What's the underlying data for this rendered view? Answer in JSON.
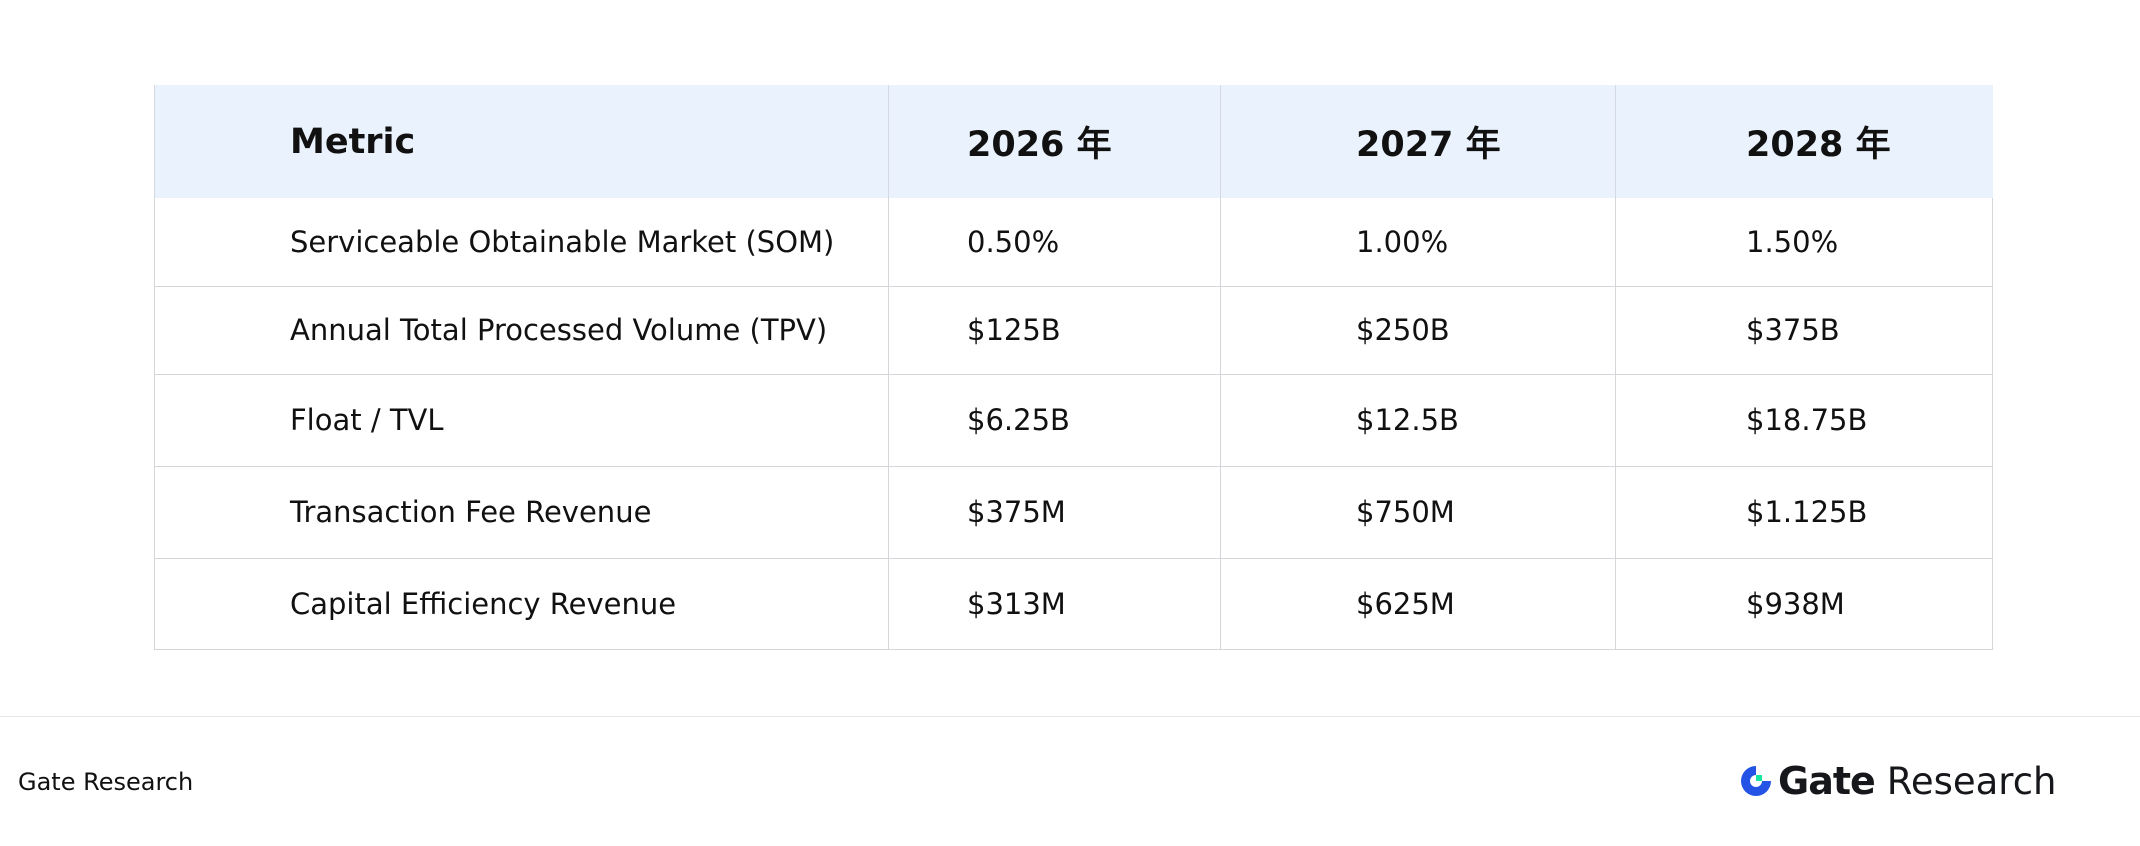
{
  "table": {
    "headers": [
      "Metric",
      "2026 年",
      "2027 年",
      "2028 年"
    ],
    "rows": [
      [
        "Serviceable Obtainable Market (SOM)",
        "0.50%",
        "1.00%",
        "1.50%"
      ],
      [
        "Annual Total Processed Volume (TPV)",
        "$125B",
        "$250B",
        "$375B"
      ],
      [
        "Float / TVL",
        "$6.25B",
        "$12.5B",
        "$18.75B"
      ],
      [
        "Transaction Fee Revenue",
        "$375M",
        "$750M",
        "$1.125B"
      ],
      [
        "Capital Efficiency Revenue",
        "$313M",
        "$625M",
        "$938M"
      ]
    ]
  },
  "footer": {
    "source_label": "Gate Research",
    "logo": {
      "icon": "gate-logo-icon",
      "brand": "Gate",
      "suffix": "Research",
      "colors": {
        "blue": "#2354e6",
        "green": "#17e6a1",
        "text": "#16171b"
      }
    }
  }
}
